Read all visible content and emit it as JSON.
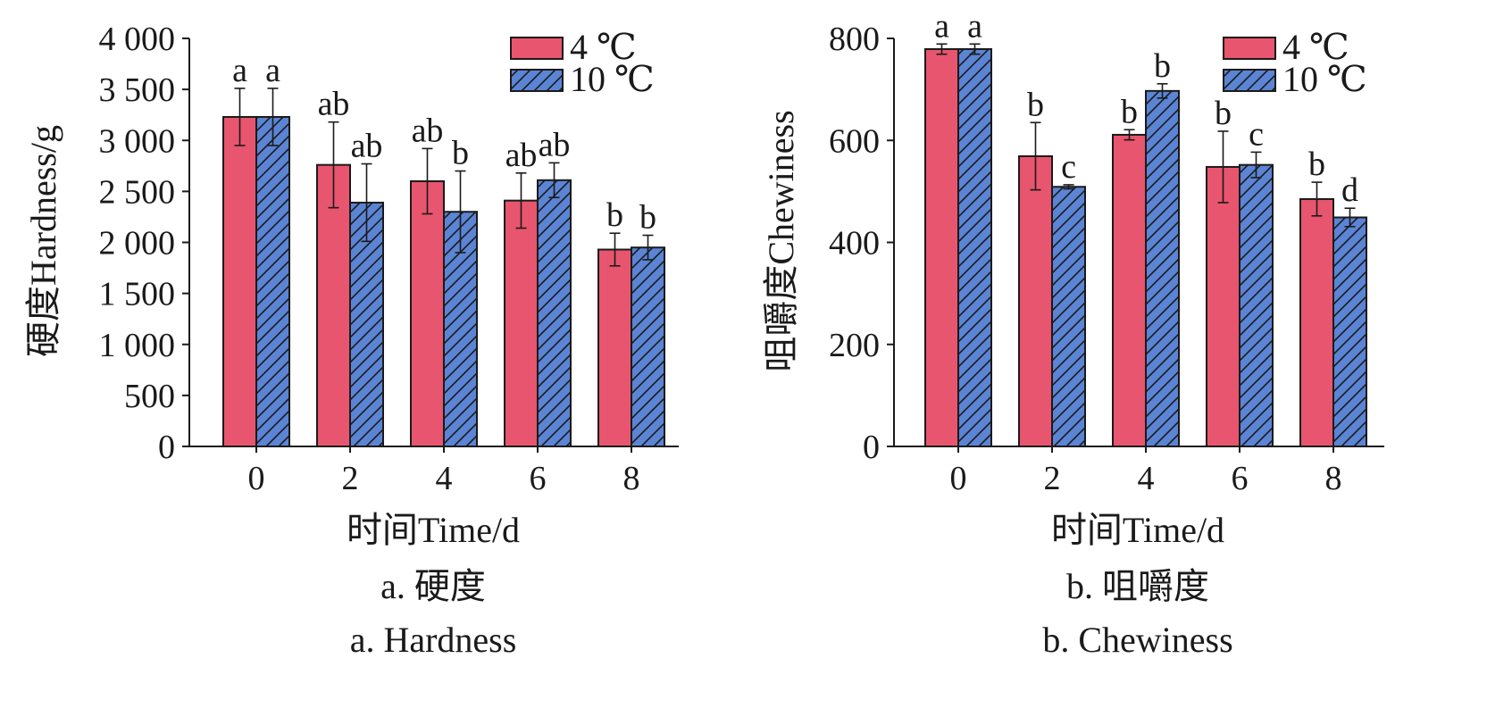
{
  "chart_data": [
    {
      "type": "bar",
      "xlabel": "时间Time/d",
      "ylabel": "硬度Hardness/g",
      "categories": [
        "0",
        "2",
        "4",
        "6",
        "8"
      ],
      "ylim": [
        0,
        4000
      ],
      "yticks": [
        0,
        500,
        1000,
        1500,
        2000,
        2500,
        3000,
        3500,
        4000
      ],
      "ytick_labels": [
        "0",
        "500",
        "1 000",
        "1 500",
        "2 000",
        "2 500",
        "3 000",
        "3 500",
        "4 000"
      ],
      "series": [
        {
          "name": "4 ℃",
          "color": "#e8556e",
          "pattern": "solid",
          "values": [
            3230,
            2760,
            2600,
            2410,
            1930
          ],
          "errors": [
            280,
            420,
            320,
            270,
            160
          ],
          "letters": [
            "a",
            "ab",
            "ab",
            "ab",
            "b"
          ]
        },
        {
          "name": "10 ℃",
          "color": "#5b84d4",
          "pattern": "diagonal-hatch",
          "values": [
            3230,
            2390,
            2300,
            2610,
            1950
          ],
          "errors": [
            280,
            380,
            400,
            170,
            120
          ],
          "letters": [
            "a",
            "ab",
            "b",
            "ab",
            "b"
          ]
        }
      ],
      "legend_position": "top-right",
      "grid": false,
      "caption_zh": "a. 硬度",
      "caption_en": "a. Hardness"
    },
    {
      "type": "bar",
      "xlabel": "时间Time/d",
      "ylabel": "咀嚼度Chewiness",
      "categories": [
        "0",
        "2",
        "4",
        "6",
        "8"
      ],
      "ylim": [
        0,
        800
      ],
      "yticks": [
        0,
        200,
        400,
        600,
        800
      ],
      "ytick_labels": [
        "0",
        "200",
        "400",
        "600",
        "800"
      ],
      "series": [
        {
          "name": "4 ℃",
          "color": "#e8556e",
          "pattern": "solid",
          "values": [
            779,
            569,
            611,
            548,
            485
          ],
          "errors": [
            10,
            66,
            10,
            70,
            33
          ],
          "letters": [
            "a",
            "b",
            "b",
            "b",
            "b"
          ]
        },
        {
          "name": "10 ℃",
          "color": "#5b84d4",
          "pattern": "diagonal-hatch",
          "values": [
            779,
            509,
            697,
            552,
            449
          ],
          "errors": [
            10,
            4,
            14,
            25,
            18
          ],
          "letters": [
            "a",
            "c",
            "b",
            "c",
            "d"
          ]
        }
      ],
      "legend_position": "top-right",
      "grid": false,
      "caption_zh": "b. 咀嚼度",
      "caption_en": "b. Chewiness"
    }
  ]
}
